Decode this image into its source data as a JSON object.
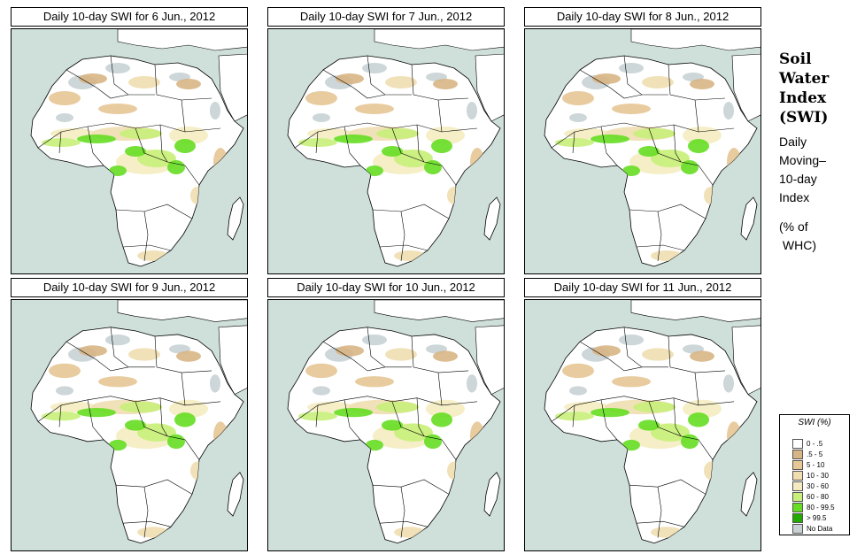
{
  "panels": [
    {
      "title": "Daily 10-day SWI for  6 Jun., 2012"
    },
    {
      "title": "Daily 10-day SWI for  7 Jun., 2012"
    },
    {
      "title": "Daily 10-day SWI for  8 Jun., 2012"
    },
    {
      "title": "Daily 10-day SWI for  9 Jun., 2012"
    },
    {
      "title": "Daily 10-day SWI for  10 Jun., 2012"
    },
    {
      "title": "Daily 10-day SWI for  11 Jun., 2012"
    }
  ],
  "side_title": {
    "line1": "Soil",
    "line2": "Water",
    "line3": "Index",
    "line4": "(SWI)"
  },
  "side_desc": {
    "line1": "Daily",
    "line2": "Moving–",
    "line3": "10-day",
    "line4": "Index"
  },
  "side_units": {
    "line1": "(% of",
    "line2": " WHC)"
  },
  "legend": {
    "title": "SWI (%)",
    "classes": [
      {
        "label": "0 - .5",
        "color": "#ffffff"
      },
      {
        "label": ".5 - 5",
        "color": "#d8b585"
      },
      {
        "label": "5 - 10",
        "color": "#e6c795"
      },
      {
        "label": "10 - 30",
        "color": "#f0deb0"
      },
      {
        "label": "30 - 60",
        "color": "#f4ecc0"
      },
      {
        "label": "60 - 80",
        "color": "#c8f07a"
      },
      {
        "label": "80 - 99.5",
        "color": "#66dd22"
      },
      {
        "label": "> 99.5",
        "color": "#22aa00"
      },
      {
        "label": "No Data",
        "color": "#c8d2d4"
      }
    ]
  },
  "colors": {
    "ocean": "#cfe0db",
    "land": "#ffffff",
    "border": "#000000"
  }
}
